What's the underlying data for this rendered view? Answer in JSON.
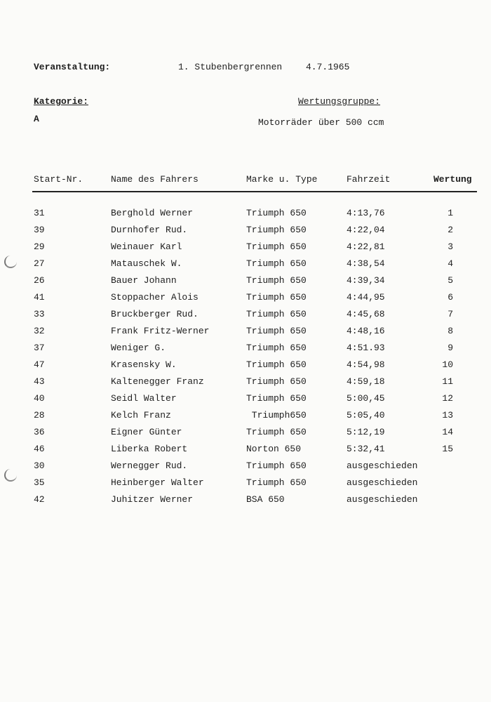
{
  "header": {
    "event_label": "Veranstaltung:",
    "event_name": "1. Stubenbergrennen",
    "event_date": "4.7.1965",
    "category_label": "Kategorie:",
    "category_value": "A",
    "group_label": "Wertungsgruppe:",
    "group_value": "Motorräder über 500 ccm"
  },
  "table": {
    "columns": [
      "Start-Nr.",
      "Name des Fahrers",
      "Marke u. Type",
      "Fahrzeit",
      "Wertung"
    ],
    "rows": [
      [
        "31",
        "Berghold Werner",
        "Triumph 650",
        "4:13,76",
        "1"
      ],
      [
        "39",
        "Durnhofer Rud.",
        "Triumph 650",
        "4:22,04",
        "2"
      ],
      [
        "29",
        "Weinauer Karl",
        "Triumph 650",
        "4:22,81",
        "3"
      ],
      [
        "27",
        "Matauschek W.",
        "Triumph 650",
        "4:38,54",
        "4"
      ],
      [
        "26",
        "Bauer Johann",
        "Triumph 650",
        "4:39,34",
        "5"
      ],
      [
        "41",
        "Stoppacher Alois",
        "Triumph 650",
        "4:44,95",
        "6"
      ],
      [
        "33",
        "Bruckberger Rud.",
        "Triumph 650",
        "4:45,68",
        "7"
      ],
      [
        "32",
        "Frank Fritz-Werner",
        "Triumph 650",
        "4:48,16",
        "8"
      ],
      [
        "37",
        "Weniger G.",
        "Triumph 650",
        "4:51.93",
        "9"
      ],
      [
        "47",
        "Krasensky W.",
        "Triumph 650",
        "4:54,98",
        "10"
      ],
      [
        "43",
        "Kaltenegger Franz",
        "Triumph 650",
        "4:59,18",
        "11"
      ],
      [
        "40",
        "Seidl Walter",
        "Triumph 650",
        "5:00,45",
        "12"
      ],
      [
        "28",
        "Kelch Franz",
        " Triumph650",
        "5:05,40",
        "13"
      ],
      [
        "36",
        "Eigner Günter",
        "Triumph 650",
        "5:12,19",
        "14"
      ],
      [
        "46",
        "Liberka Robert",
        "Norton 650",
        "5:32,41",
        "15"
      ],
      [
        "30",
        "Wernegger Rud.",
        "Triumph 650",
        "ausgeschieden",
        ""
      ],
      [
        "35",
        "Heinberger Walter",
        "Triumph 650",
        "ausgeschieden",
        ""
      ],
      [
        "42",
        "Juhitzer Werner",
        "BSA 650",
        "ausgeschieden",
        ""
      ]
    ]
  }
}
